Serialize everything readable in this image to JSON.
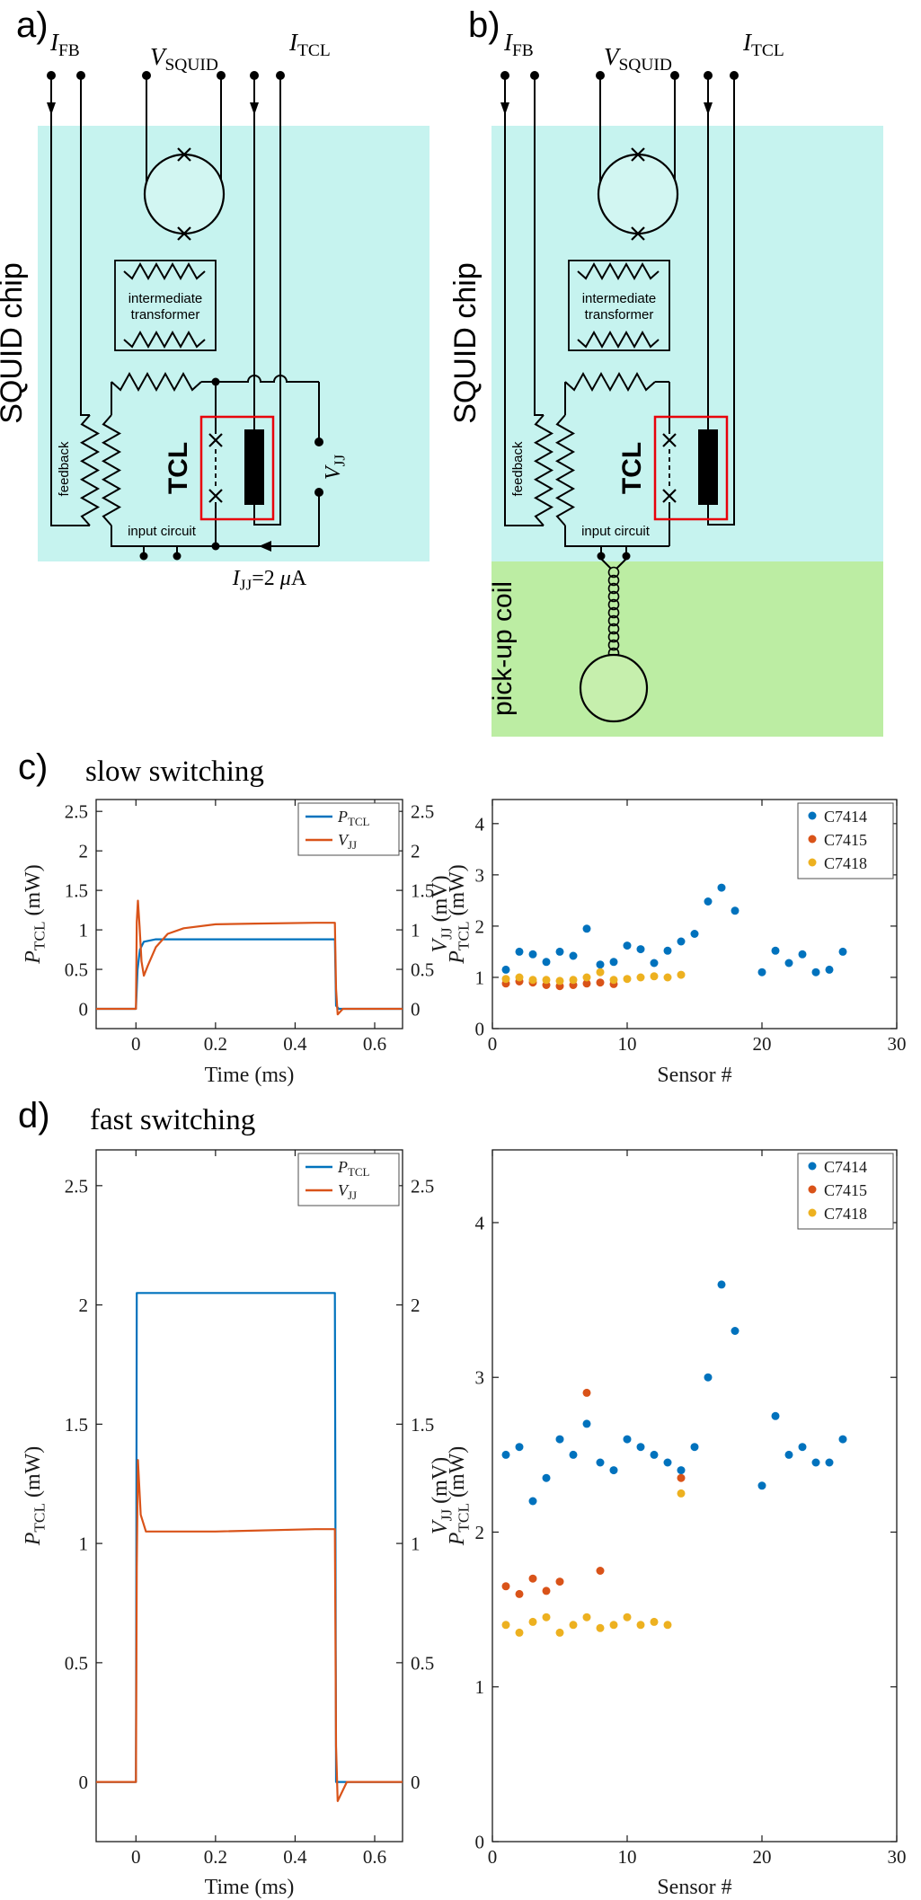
{
  "panels": {
    "a": {
      "label": "a)"
    },
    "b": {
      "label": "b)"
    },
    "c": {
      "label": "c)",
      "title": "slow switching"
    },
    "d": {
      "label": "d)",
      "title": "fast switching"
    }
  },
  "diagram": {
    "labels": {
      "i_fb": [
        {
          "t": "I",
          "i": 1
        },
        {
          "t": "FB",
          "s": 1
        }
      ],
      "v_squid": [
        {
          "t": "V",
          "i": 1
        },
        {
          "t": "SQUID",
          "s": 1
        }
      ],
      "i_tcl": [
        {
          "t": "I",
          "i": 1
        },
        {
          "t": "TCL",
          "s": 1
        }
      ],
      "v_jj": [
        {
          "t": "V",
          "i": 1
        },
        {
          "t": "JJ",
          "s": 1
        }
      ],
      "i_jj": [
        {
          "t": "I",
          "i": 1
        },
        {
          "t": "JJ",
          "s": 1
        },
        {
          "t": "=2 "
        },
        {
          "t": "μ",
          "i": 1
        },
        {
          "t": "A"
        }
      ],
      "squid_chip": "SQUID chip",
      "pickup_coil": "pick-up coil",
      "transformer_line1": "intermediate",
      "transformer_line2": "transformer",
      "feedback": "feedback",
      "tcl": "TCL",
      "input_circuit": "input circuit"
    },
    "colors": {
      "chip_bg": "#c6f3ef",
      "pickup_bg": "#bceda3",
      "tcl_red": "#e8000b",
      "squid_loop_fill": "#d2f6f2",
      "pickup_loop_fill": "#c6efad"
    }
  },
  "chart_data": [
    {
      "id": "c-line",
      "type": "line",
      "xlabel": "Time (ms)",
      "ylabel": [
        {
          "t": "P",
          "i": 1
        },
        {
          "t": "TCL",
          "s": 1
        },
        {
          "t": " (mW)"
        }
      ],
      "ylabel_right": [
        {
          "t": "V",
          "i": 1
        },
        {
          "t": "JJ",
          "s": 1
        },
        {
          "t": " (mV)"
        }
      ],
      "xlim": [
        -0.1,
        0.67
      ],
      "ylim": [
        -0.25,
        2.65
      ],
      "xticks": [
        0,
        0.2,
        0.4,
        0.6
      ],
      "xtick_labels": [
        "0",
        "0.2",
        "0.4",
        "0.6"
      ],
      "yticks": [
        0,
        0.5,
        1,
        1.5,
        2,
        2.5
      ],
      "ytick_labels": [
        "0",
        "0.5",
        "1",
        "1.5",
        "2",
        "2.5"
      ],
      "right_ticks": true,
      "legend": [
        {
          "label": [
            {
              "t": "P",
              "i": 1
            },
            {
              "t": "TCL",
              "s": 1
            }
          ],
          "color": "#0072BD"
        },
        {
          "label": [
            {
              "t": "V",
              "i": 1
            },
            {
              "t": "JJ",
              "s": 1
            }
          ],
          "color": "#D95319"
        }
      ],
      "series": [
        {
          "name": "P-TCL",
          "color": "#0072BD",
          "x": [
            -0.1,
            0,
            0.004,
            0.01,
            0.02,
            0.05,
            0.49,
            0.5,
            0.503,
            0.51,
            0.67
          ],
          "y": [
            0,
            0,
            0.5,
            0.75,
            0.85,
            0.88,
            0.88,
            0.88,
            0.04,
            0,
            0
          ]
        },
        {
          "name": "V-JJ",
          "color": "#D95319",
          "x": [
            -0.1,
            0,
            0.002,
            0.005,
            0.009,
            0.014,
            0.02,
            0.03,
            0.05,
            0.08,
            0.12,
            0.2,
            0.3,
            0.45,
            0.5,
            0.503,
            0.507,
            0.52,
            0.67
          ],
          "y": [
            0,
            0,
            1.1,
            1.37,
            1.05,
            0.6,
            0.42,
            0.55,
            0.78,
            0.95,
            1.02,
            1.07,
            1.08,
            1.09,
            1.09,
            0.25,
            -0.07,
            0,
            0
          ]
        }
      ]
    },
    {
      "id": "c-scatter",
      "type": "scatter",
      "xlabel": "Sensor #",
      "ylabel": [
        {
          "t": "P",
          "i": 1
        },
        {
          "t": "TCL",
          "s": 1
        },
        {
          "t": " (mW)"
        }
      ],
      "xlim": [
        0,
        30
      ],
      "ylim": [
        0,
        4.47
      ],
      "xticks": [
        0,
        10,
        20,
        30
      ],
      "xtick_labels": [
        "0",
        "10",
        "20",
        "30"
      ],
      "yticks": [
        0,
        1,
        2,
        3,
        4
      ],
      "ytick_labels": [
        "0",
        "1",
        "2",
        "3",
        "4"
      ],
      "right_ticks": false,
      "legend": [
        {
          "label": "C7414",
          "color": "#0072BD"
        },
        {
          "label": "C7415",
          "color": "#D95319"
        },
        {
          "label": "C7418",
          "color": "#EDB120"
        }
      ],
      "series": [
        {
          "name": "C7414",
          "color": "#0072BD",
          "x": [
            1,
            2,
            3,
            4,
            5,
            6,
            7,
            8,
            9,
            10,
            11,
            12,
            13,
            14,
            15,
            16,
            17,
            18,
            20,
            21,
            22,
            23,
            24,
            25,
            26
          ],
          "y": [
            1.15,
            1.5,
            1.45,
            1.3,
            1.5,
            1.42,
            1.95,
            1.25,
            1.3,
            1.62,
            1.55,
            1.28,
            1.52,
            1.7,
            1.85,
            2.48,
            2.75,
            2.3,
            1.1,
            1.52,
            1.28,
            1.45,
            1.1,
            1.15,
            1.5
          ]
        },
        {
          "name": "C7415",
          "color": "#D95319",
          "x": [
            1,
            2,
            3,
            4,
            5,
            6,
            7,
            8,
            9
          ],
          "y": [
            0.88,
            0.92,
            0.9,
            0.85,
            0.83,
            0.85,
            0.88,
            0.9,
            0.87
          ]
        },
        {
          "name": "C7418",
          "color": "#EDB120",
          "x": [
            1,
            2,
            3,
            4,
            5,
            6,
            7,
            8,
            9,
            10,
            11,
            12,
            13,
            14
          ],
          "y": [
            0.97,
            1.0,
            0.95,
            0.95,
            0.93,
            0.95,
            1.0,
            1.1,
            0.95,
            0.97,
            1.0,
            1.02,
            1.0,
            1.05
          ]
        }
      ]
    },
    {
      "id": "d-line",
      "type": "line",
      "xlabel": "Time (ms)",
      "ylabel": [
        {
          "t": "P",
          "i": 1
        },
        {
          "t": "TCL",
          "s": 1
        },
        {
          "t": " (mW)"
        }
      ],
      "ylabel_right": [
        {
          "t": "V",
          "i": 1
        },
        {
          "t": "JJ",
          "s": 1
        },
        {
          "t": " (mV)"
        }
      ],
      "xlim": [
        -0.1,
        0.67
      ],
      "ylim": [
        -0.25,
        2.65
      ],
      "xticks": [
        0,
        0.2,
        0.4,
        0.6
      ],
      "xtick_labels": [
        "0",
        "0.2",
        "0.4",
        "0.6"
      ],
      "yticks": [
        0,
        0.5,
        1,
        1.5,
        2,
        2.5
      ],
      "ytick_labels": [
        "0",
        "0.5",
        "1",
        "1.5",
        "2",
        "2.5"
      ],
      "right_ticks": true,
      "legend": [
        {
          "label": [
            {
              "t": "P",
              "i": 1
            },
            {
              "t": "TCL",
              "s": 1
            }
          ],
          "color": "#0072BD"
        },
        {
          "label": [
            {
              "t": "V",
              "i": 1
            },
            {
              "t": "JJ",
              "s": 1
            }
          ],
          "color": "#D95319"
        }
      ],
      "series": [
        {
          "name": "P-TCL",
          "color": "#0072BD",
          "x": [
            -0.1,
            0,
            0.002,
            0.5,
            0.503,
            0.67
          ],
          "y": [
            0,
            0,
            2.05,
            2.05,
            0,
            0
          ]
        },
        {
          "name": "V-JJ",
          "color": "#D95319",
          "x": [
            -0.1,
            0,
            0.002,
            0.005,
            0.012,
            0.025,
            0.05,
            0.2,
            0.45,
            0.5,
            0.503,
            0.507,
            0.53,
            0.67
          ],
          "y": [
            0,
            0,
            0.9,
            1.35,
            1.12,
            1.05,
            1.05,
            1.05,
            1.06,
            1.06,
            0.15,
            -0.08,
            0,
            0
          ]
        }
      ]
    },
    {
      "id": "d-scatter",
      "type": "scatter",
      "xlabel": "Sensor #",
      "ylabel": [
        {
          "t": "P",
          "i": 1
        },
        {
          "t": "TCL",
          "s": 1
        },
        {
          "t": " (mW)"
        }
      ],
      "xlim": [
        0,
        30
      ],
      "ylim": [
        0,
        4.47
      ],
      "xticks": [
        0,
        10,
        20,
        30
      ],
      "xtick_labels": [
        "0",
        "10",
        "20",
        "30"
      ],
      "yticks": [
        0,
        1,
        2,
        3,
        4
      ],
      "ytick_labels": [
        "0",
        "1",
        "2",
        "3",
        "4"
      ],
      "right_ticks": false,
      "legend": [
        {
          "label": "C7414",
          "color": "#0072BD"
        },
        {
          "label": "C7415",
          "color": "#D95319"
        },
        {
          "label": "C7418",
          "color": "#EDB120"
        }
      ],
      "series": [
        {
          "name": "C7414",
          "color": "#0072BD",
          "x": [
            1,
            2,
            3,
            4,
            5,
            6,
            7,
            8,
            9,
            10,
            11,
            12,
            13,
            14,
            15,
            16,
            17,
            18,
            20,
            21,
            22,
            23,
            24,
            25,
            26
          ],
          "y": [
            2.5,
            2.55,
            2.2,
            2.35,
            2.6,
            2.5,
            2.7,
            2.45,
            2.4,
            2.6,
            2.55,
            2.5,
            2.45,
            2.4,
            2.55,
            3.0,
            3.6,
            3.3,
            2.3,
            2.75,
            2.5,
            2.55,
            2.45,
            2.45,
            2.6
          ]
        },
        {
          "name": "C7415",
          "color": "#D95319",
          "x": [
            1,
            2,
            3,
            4,
            5,
            7,
            8,
            14
          ],
          "y": [
            1.65,
            1.6,
            1.7,
            1.62,
            1.68,
            2.9,
            1.75,
            2.35
          ]
        },
        {
          "name": "C7418",
          "color": "#EDB120",
          "x": [
            1,
            2,
            3,
            4,
            5,
            6,
            7,
            8,
            9,
            10,
            11,
            12,
            13,
            14
          ],
          "y": [
            1.4,
            1.35,
            1.42,
            1.45,
            1.35,
            1.4,
            1.45,
            1.38,
            1.4,
            1.45,
            1.4,
            1.42,
            1.4,
            2.25
          ]
        }
      ]
    }
  ]
}
